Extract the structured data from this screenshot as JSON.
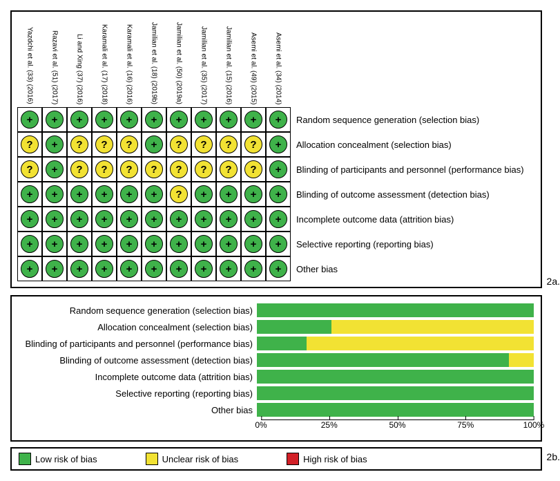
{
  "colors": {
    "low": "#3fb24a",
    "unclear": "#f2e233",
    "high": "#d22027",
    "border": "#000000",
    "background": "#ffffff"
  },
  "symbols": {
    "low": "+",
    "unclear": "?",
    "high": "−"
  },
  "fig_labels": {
    "a": "2a.",
    "b": "2b."
  },
  "studies": [
    "Yazdchi et al. (33) (2016)",
    "Razavi et al. (51) (2017)",
    "Li and Xing (37) (2016)",
    "Karamali et al. (17) (2018)",
    "Karamali et al. (16) (2016)",
    "Jamilian et al. (18) (2019b)",
    "Jamilian et al. (50) (2019a)",
    "Jamilian et al. (35) (2017)",
    "Jamilian et al. (15) (2016)",
    "Asemi et al. (49) (2015)",
    "Asemi et al. (34) (2014)"
  ],
  "domains": [
    "Random sequence generation (selection bias)",
    "Allocation concealment (selection bias)",
    "Blinding of participants and personnel (performance bias)",
    "Blinding of outcome assessment (detection bias)",
    "Incomplete outcome data (attrition bias)",
    "Selective reporting (reporting bias)",
    "Other bias"
  ],
  "ratings": [
    [
      "low",
      "low",
      "low",
      "low",
      "low",
      "low",
      "low",
      "low",
      "low",
      "low",
      "low"
    ],
    [
      "unclear",
      "low",
      "unclear",
      "unclear",
      "unclear",
      "low",
      "unclear",
      "unclear",
      "unclear",
      "unclear",
      "low"
    ],
    [
      "unclear",
      "low",
      "unclear",
      "unclear",
      "unclear",
      "unclear",
      "unclear",
      "unclear",
      "unclear",
      "unclear",
      "low"
    ],
    [
      "low",
      "low",
      "low",
      "low",
      "low",
      "low",
      "unclear",
      "low",
      "low",
      "low",
      "low"
    ],
    [
      "low",
      "low",
      "low",
      "low",
      "low",
      "low",
      "low",
      "low",
      "low",
      "low",
      "low"
    ],
    [
      "low",
      "low",
      "low",
      "low",
      "low",
      "low",
      "low",
      "low",
      "low",
      "low",
      "low"
    ],
    [
      "low",
      "low",
      "low",
      "low",
      "low",
      "low",
      "low",
      "low",
      "low",
      "low",
      "low"
    ]
  ],
  "summary_bars": [
    {
      "low": 100,
      "unclear": 0,
      "high": 0
    },
    {
      "low": 27,
      "unclear": 73,
      "high": 0
    },
    {
      "low": 18,
      "unclear": 82,
      "high": 0
    },
    {
      "low": 91,
      "unclear": 9,
      "high": 0
    },
    {
      "low": 100,
      "unclear": 0,
      "high": 0
    },
    {
      "low": 100,
      "unclear": 0,
      "high": 0
    },
    {
      "low": 100,
      "unclear": 0,
      "high": 0
    }
  ],
  "axis_ticks": [
    "0%",
    "25%",
    "50%",
    "75%",
    "100%"
  ],
  "legend": {
    "low": "Low risk of bias",
    "unclear": "Unclear risk of bias",
    "high": "High risk of bias"
  }
}
